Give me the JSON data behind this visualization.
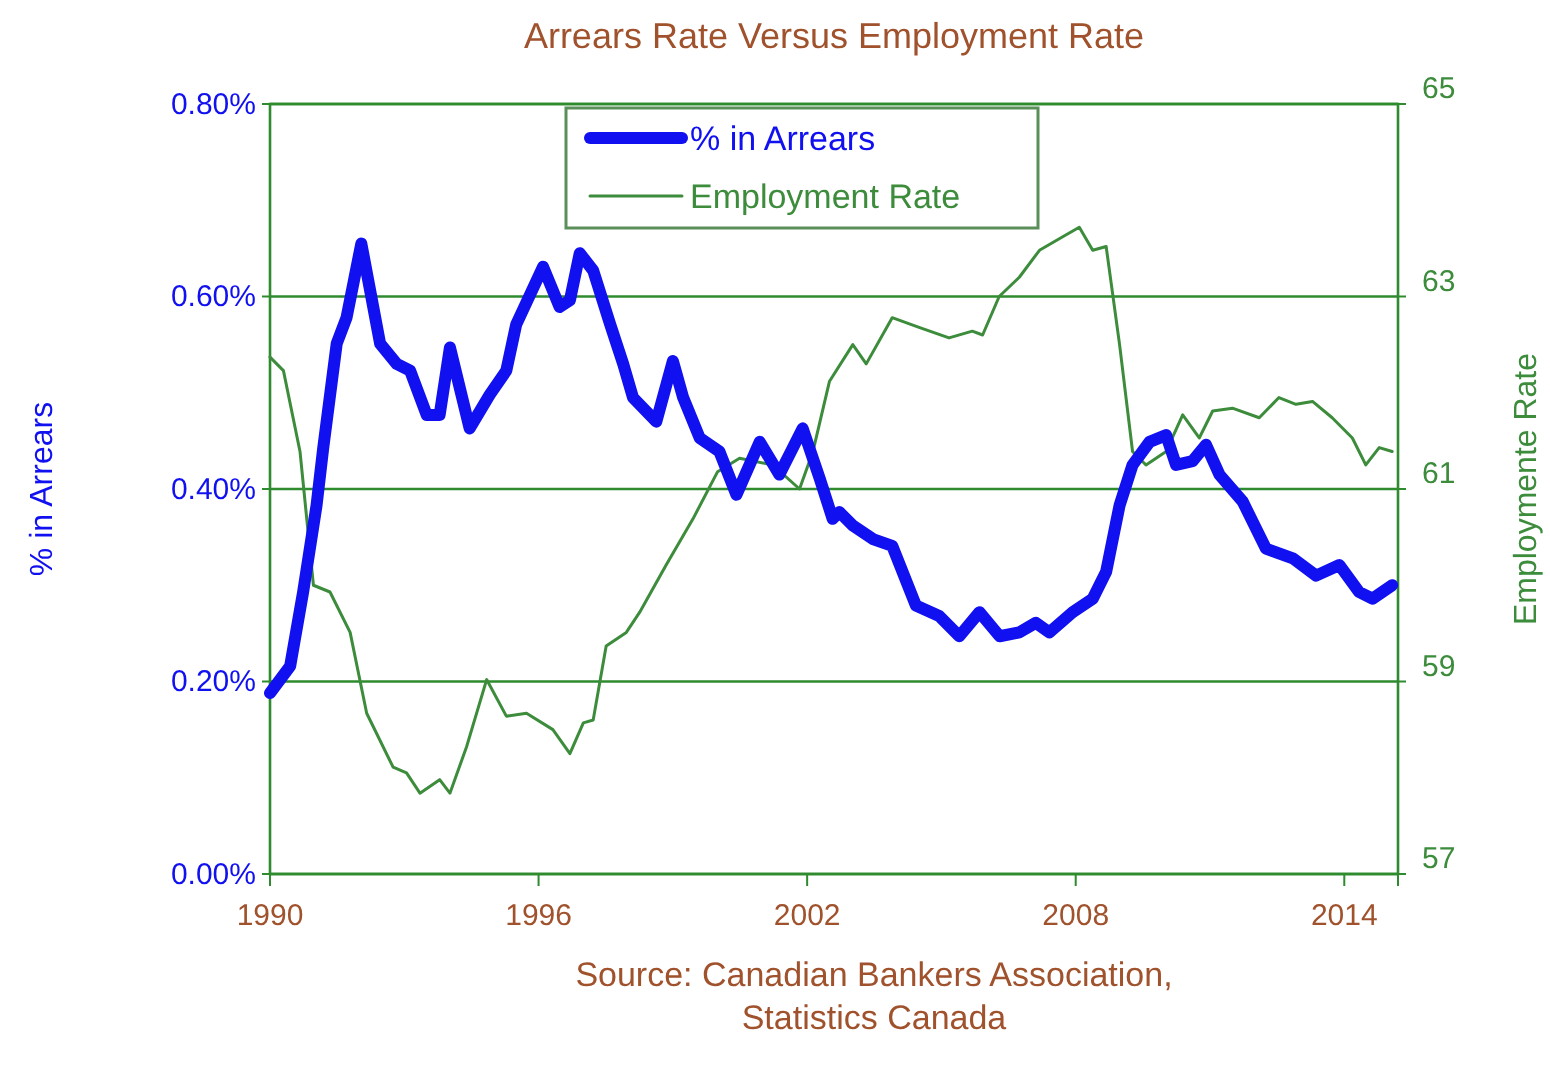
{
  "chart_data": {
    "type": "line",
    "title": "Arrears Rate Versus Employment Rate",
    "ylabel": "% in Arrears",
    "y2label": "Employmente Rate",
    "annotations": [
      "Source:  Canadian Bankers Association,\nStatistics Canada"
    ],
    "xlim": [
      1990,
      2015.2
    ],
    "xticks": [
      1990,
      1996,
      2002,
      2008,
      2014
    ],
    "ylim": [
      0,
      0.8
    ],
    "yticks": [
      {
        "value": 0,
        "label": "0.00%"
      },
      {
        "value": 0.2,
        "label": "0.20%"
      },
      {
        "value": 0.4,
        "label": "0.40%"
      },
      {
        "value": 0.6,
        "label": "0.60%"
      },
      {
        "value": 0.8,
        "label": "0.80%"
      }
    ],
    "y2lim": [
      57,
      65
    ],
    "y2ticks": [
      57,
      59,
      61,
      63,
      65
    ],
    "grid": "y",
    "legend": "top",
    "series": [
      {
        "name": "% in Arrears",
        "color": "#1010f0",
        "x": [
          1990.0,
          1990.45,
          1990.74,
          1991.04,
          1991.19,
          1991.49,
          1991.71,
          1992.04,
          1992.46,
          1992.83,
          1993.13,
          1993.5,
          1993.79,
          1994.02,
          1994.46,
          1994.91,
          1995.28,
          1995.5,
          1996.1,
          1996.47,
          1996.7,
          1996.92,
          1997.22,
          1997.6,
          1997.89,
          1998.11,
          1998.63,
          1999.0,
          1999.23,
          1999.6,
          2000.04,
          2000.42,
          2000.94,
          2001.38,
          2001.9,
          2002.28,
          2002.57,
          2002.72,
          2003.02,
          2003.47,
          2003.9,
          2004.43,
          2004.95,
          2005.4,
          2005.85,
          2006.3,
          2006.74,
          2007.11,
          2007.41,
          2007.93,
          2008.38,
          2008.68,
          2008.98,
          2009.27,
          2009.65,
          2010.02,
          2010.24,
          2010.61,
          2010.91,
          2011.21,
          2011.73,
          2012.25,
          2012.85,
          2013.37,
          2013.89,
          2014.33,
          2014.63,
          2015.07
        ],
        "values": [
          0.188,
          0.216,
          0.293,
          0.383,
          0.443,
          0.551,
          0.578,
          0.655,
          0.551,
          0.53,
          0.523,
          0.477,
          0.477,
          0.547,
          0.463,
          0.498,
          0.523,
          0.571,
          0.631,
          0.589,
          0.596,
          0.645,
          0.627,
          0.571,
          0.53,
          0.495,
          0.47,
          0.533,
          0.495,
          0.453,
          0.439,
          0.394,
          0.449,
          0.415,
          0.463,
          0.411,
          0.369,
          0.376,
          0.362,
          0.348,
          0.341,
          0.279,
          0.268,
          0.247,
          0.272,
          0.247,
          0.251,
          0.261,
          0.251,
          0.272,
          0.286,
          0.314,
          0.383,
          0.425,
          0.449,
          0.456,
          0.425,
          0.429,
          0.446,
          0.415,
          0.387,
          0.338,
          0.328,
          0.31,
          0.321,
          0.293,
          0.286,
          0.3
        ]
      },
      {
        "name": "Employment Rate",
        "color": "#3c8c3c",
        "axis": "y2",
        "x": [
          1990.0,
          1990.3,
          1990.67,
          1990.97,
          1991.34,
          1991.79,
          1992.16,
          1992.75,
          1993.05,
          1993.35,
          1993.79,
          1994.02,
          1994.39,
          1994.84,
          1995.28,
          1995.73,
          1996.32,
          1996.7,
          1997.0,
          1997.22,
          1997.51,
          1997.96,
          1998.26,
          1998.85,
          1999.45,
          2000.0,
          2000.49,
          2001.23,
          2001.83,
          2002.13,
          2002.5,
          2003.02,
          2003.32,
          2003.9,
          2004.5,
          2005.17,
          2005.69,
          2005.92,
          2006.29,
          2006.74,
          2007.19,
          2007.71,
          2008.08,
          2008.38,
          2008.68,
          2008.98,
          2009.27,
          2009.57,
          2010.02,
          2010.39,
          2010.76,
          2011.06,
          2011.5,
          2012.1,
          2012.54,
          2012.92,
          2013.29,
          2013.73,
          2014.18,
          2014.48,
          2014.78,
          2015.07
        ],
        "values": [
          62.37,
          62.23,
          61.39,
          60.0,
          59.93,
          59.51,
          58.67,
          58.11,
          58.05,
          57.84,
          57.98,
          57.84,
          58.32,
          59.02,
          58.64,
          58.67,
          58.5,
          58.25,
          58.57,
          58.6,
          59.37,
          59.51,
          59.72,
          60.21,
          60.69,
          61.18,
          61.32,
          61.25,
          61.0,
          61.39,
          62.12,
          62.5,
          62.3,
          62.78,
          62.68,
          62.57,
          62.64,
          62.6,
          63.0,
          63.2,
          63.48,
          63.62,
          63.72,
          63.48,
          63.52,
          62.5,
          61.39,
          61.25,
          61.39,
          61.77,
          61.53,
          61.81,
          61.84,
          61.74,
          61.95,
          61.88,
          61.91,
          61.74,
          61.53,
          61.25,
          61.43,
          61.39
        ]
      }
    ]
  }
}
